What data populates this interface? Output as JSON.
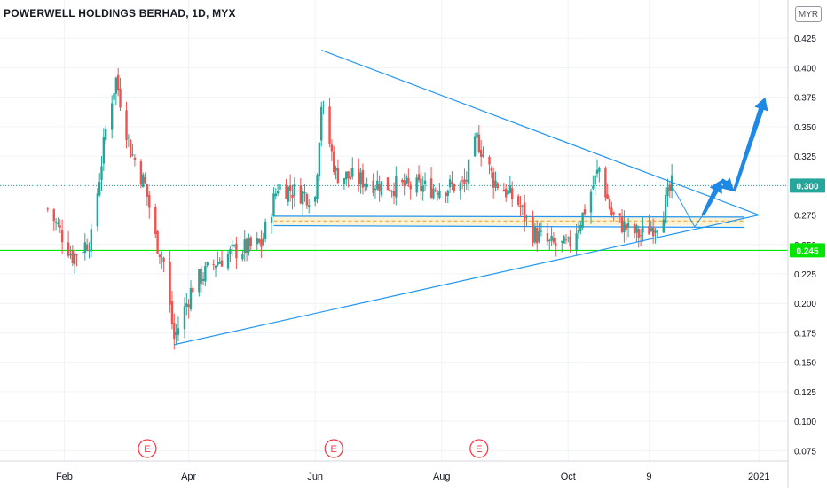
{
  "header": {
    "title": "POWERWELL HOLDINGS BERHAD, 1D, MYX",
    "currency": "MYR"
  },
  "colors": {
    "up": "#26a69a",
    "down": "#ef5350",
    "trendline": "#2196f3",
    "support_line": "#00e600",
    "price_marker": "#26a69a",
    "support_marker": "#00e600",
    "arrow": "#1e88e5",
    "earnings": "#f23645"
  },
  "chart_data": {
    "type": "candlestick",
    "yaxis": {
      "range": [
        0.07,
        0.45
      ],
      "ticks": [
        "0.075",
        "0.100",
        "0.125",
        "0.150",
        "0.175",
        "0.200",
        "0.225",
        "0.250",
        "0.275",
        "0.300",
        "0.325",
        "0.350",
        "0.375",
        "0.400",
        "0.425"
      ]
    },
    "xaxis": {
      "range": [
        "2020-01-01",
        "2021-01-15"
      ],
      "ticks": [
        {
          "label": "Feb",
          "date": "2020-02-01"
        },
        {
          "label": "Apr",
          "date": "2020-04-01"
        },
        {
          "label": "Jun",
          "date": "2020-06-01"
        },
        {
          "label": "Aug",
          "date": "2020-08-01"
        },
        {
          "label": "Oct",
          "date": "2020-10-01"
        },
        {
          "label": "9",
          "date": "2020-11-09"
        },
        {
          "label": "2021",
          "date": "2021-01-01"
        }
      ]
    },
    "price_markers": [
      {
        "label": "0.300",
        "value": 0.3,
        "kind": "last"
      },
      {
        "label": "0.245",
        "value": 0.245,
        "kind": "support"
      }
    ],
    "support_level": 0.245,
    "last_price": 0.3,
    "earnings_markers": [
      {
        "label": "E",
        "date": "2020-03-12"
      },
      {
        "label": "E",
        "date": "2020-06-10"
      },
      {
        "label": "E",
        "date": "2020-08-19"
      }
    ],
    "triangle": [
      {
        "date": "2020-03-25",
        "price": 0.165
      },
      {
        "date": "2020-06-04",
        "price": 0.415
      },
      {
        "date": "2021-01-01",
        "price": 0.275
      }
    ],
    "zone": {
      "start": "2020-05-12",
      "end": "2020-12-25",
      "top": 0.274,
      "bottom": 0.266,
      "mid": 0.27
    },
    "projection": [
      {
        "date": "2020-11-20",
        "price": 0.3
      },
      {
        "date": "2020-12-01",
        "price": 0.265
      },
      {
        "date": "2020-12-05",
        "price": 0.275
      },
      {
        "date": "2020-12-08",
        "price": 0.3
      },
      {
        "date": "2020-12-14",
        "price": 0.305
      },
      {
        "date": "2020-12-20",
        "price": 0.295
      },
      {
        "date": "2020-12-30",
        "price": 0.3
      },
      {
        "date": "2021-01-04",
        "price": 0.375
      }
    ],
    "key_prices": [
      {
        "date": "2020-01-24",
        "price": 0.28
      },
      {
        "date": "2020-01-29",
        "price": 0.265
      },
      {
        "date": "2020-02-05",
        "price": 0.24
      },
      {
        "date": "2020-02-14",
        "price": 0.255
      },
      {
        "date": "2020-02-22",
        "price": 0.36
      },
      {
        "date": "2020-02-26",
        "price": 0.39
      },
      {
        "date": "2020-03-04",
        "price": 0.33
      },
      {
        "date": "2020-03-11",
        "price": 0.3
      },
      {
        "date": "2020-03-16",
        "price": 0.255
      },
      {
        "date": "2020-03-20",
        "price": 0.235
      },
      {
        "date": "2020-03-25",
        "price": 0.17
      },
      {
        "date": "2020-04-03",
        "price": 0.215
      },
      {
        "date": "2020-04-14",
        "price": 0.235
      },
      {
        "date": "2020-04-24",
        "price": 0.245
      },
      {
        "date": "2020-05-06",
        "price": 0.25
      },
      {
        "date": "2020-05-14",
        "price": 0.3
      },
      {
        "date": "2020-05-22",
        "price": 0.295
      },
      {
        "date": "2020-06-01",
        "price": 0.29
      },
      {
        "date": "2020-06-04",
        "price": 0.37
      },
      {
        "date": "2020-06-11",
        "price": 0.31
      },
      {
        "date": "2020-06-22",
        "price": 0.305
      },
      {
        "date": "2020-07-06",
        "price": 0.3
      },
      {
        "date": "2020-07-27",
        "price": 0.298
      },
      {
        "date": "2020-08-12",
        "price": 0.3
      },
      {
        "date": "2020-08-18",
        "price": 0.34
      },
      {
        "date": "2020-08-26",
        "price": 0.305
      },
      {
        "date": "2020-09-07",
        "price": 0.285
      },
      {
        "date": "2020-09-14",
        "price": 0.26
      },
      {
        "date": "2020-09-22",
        "price": 0.25
      },
      {
        "date": "2020-10-01",
        "price": 0.248
      },
      {
        "date": "2020-10-08",
        "price": 0.275
      },
      {
        "date": "2020-10-16",
        "price": 0.315
      },
      {
        "date": "2020-10-22",
        "price": 0.275
      },
      {
        "date": "2020-10-30",
        "price": 0.262
      },
      {
        "date": "2020-11-05",
        "price": 0.258
      },
      {
        "date": "2020-11-14",
        "price": 0.27
      },
      {
        "date": "2020-11-20",
        "price": 0.3
      }
    ]
  }
}
